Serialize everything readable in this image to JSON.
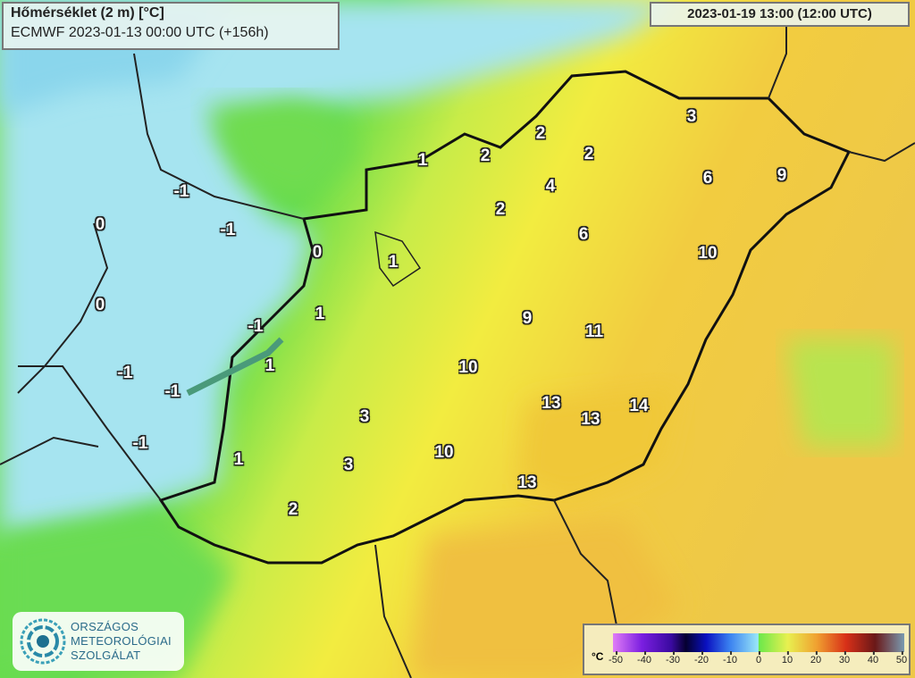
{
  "header": {
    "title": "Hőmérséklet (2 m) [°C]",
    "subtitle": "ECMWF 2023-01-13 00:00 UTC (+156h)",
    "valid_time": "2023-01-19 13:00 (12:00 UTC)"
  },
  "legend": {
    "unit": "°C",
    "ticks": [
      "-50",
      "-40",
      "-30",
      "-20",
      "-10",
      "0",
      "10",
      "20",
      "30",
      "40",
      "50"
    ],
    "colors": {
      "cold_end": "#e07cf6",
      "zero_blue": "#9ae8f8",
      "zero_green": "#6ae84a",
      "warm": "#f0a030",
      "hot_end": "#7a9ab0"
    }
  },
  "logo": {
    "lines": [
      "ORSZÁGOS",
      "METEOROLÓGIAI",
      "SZOLGÁLAT"
    ]
  },
  "temperature_labels": [
    "-1",
    "0",
    "-1",
    "0",
    "1",
    "2",
    "2",
    "2",
    "3",
    "4",
    "2",
    "6",
    "9",
    "6",
    "1",
    "10",
    "0",
    "1",
    "-1",
    "9",
    "11",
    "1",
    "-1",
    "-1",
    "10",
    "13",
    "13",
    "14",
    "3",
    "-1",
    "1",
    "3",
    "10",
    "13",
    "2"
  ]
}
